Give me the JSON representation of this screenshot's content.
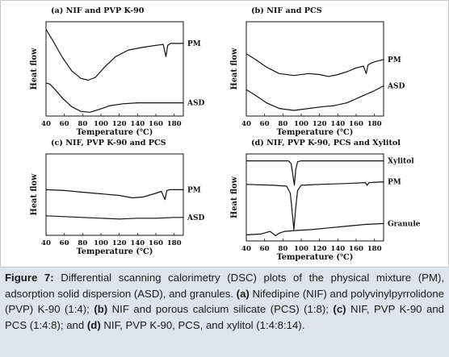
{
  "figure": {
    "caption": {
      "label": "Figure 7:",
      "text": " Differential scanning calorimetry (DSC) plots of the physical mixture (PM), adsorption solid dispersion (ASD), and granules. ",
      "parts": [
        {
          "tag": "(a)",
          "text": " Nifedipine (NIF) and polyvinylpyrrolidone (PVP) K-90 (1:4); "
        },
        {
          "tag": "(b)",
          "text": " NIF and porous calcium silicate (PCS) (1:8); "
        },
        {
          "tag": "(c)",
          "text": " NIF, PVP K-90 and PCS (1:4:8); and "
        },
        {
          "tag": "(d)",
          "text": " NIF, PVP K-90, PCS, and xylitol (1:4:8:14)."
        }
      ]
    }
  },
  "chart_data": [
    {
      "type": "line",
      "title": "(a) NIF and PVP K-90",
      "xlabel": "Temperature (℃)",
      "ylabel": "Heat flow",
      "xlim": [
        40,
        190
      ],
      "x_ticks": [
        40,
        60,
        80,
        100,
        120,
        140,
        160,
        180
      ],
      "ylim": [
        0,
        1
      ],
      "series": [
        {
          "name": "PM",
          "color": "#111111",
          "x": [
            40,
            48,
            58,
            68,
            78,
            86,
            94,
            104,
            116,
            130,
            146,
            160,
            168,
            171,
            173,
            176,
            182,
            190
          ],
          "y": [
            0.92,
            0.79,
            0.62,
            0.48,
            0.4,
            0.38,
            0.41,
            0.52,
            0.63,
            0.7,
            0.73,
            0.75,
            0.76,
            0.63,
            0.75,
            0.77,
            0.77,
            0.77
          ]
        },
        {
          "name": "ASD",
          "color": "#111111",
          "x": [
            40,
            44,
            50,
            58,
            68,
            78,
            88,
            98,
            110,
            124,
            140,
            160,
            180,
            190
          ],
          "y": [
            0.35,
            0.34,
            0.28,
            0.19,
            0.1,
            0.05,
            0.04,
            0.07,
            0.11,
            0.13,
            0.14,
            0.14,
            0.14,
            0.14
          ]
        }
      ]
    },
    {
      "type": "line",
      "title": "(b) NIF and PCS",
      "xlabel": "Temperature (℃)",
      "ylabel": "Heat flow",
      "xlim": [
        40,
        190
      ],
      "x_ticks": [
        40,
        60,
        80,
        100,
        120,
        140,
        160,
        180
      ],
      "ylim": [
        0,
        1
      ],
      "series": [
        {
          "name": "PM",
          "color": "#111111",
          "x": [
            40,
            50,
            62,
            76,
            92,
            108,
            120,
            130,
            140,
            150,
            160,
            168,
            171,
            173,
            176,
            182,
            190
          ],
          "y": [
            0.66,
            0.6,
            0.52,
            0.45,
            0.43,
            0.45,
            0.44,
            0.42,
            0.44,
            0.47,
            0.51,
            0.53,
            0.45,
            0.54,
            0.56,
            0.58,
            0.6
          ]
        },
        {
          "name": "ASD",
          "color": "#111111",
          "x": [
            40,
            50,
            62,
            76,
            92,
            108,
            124,
            136,
            150,
            164,
            178,
            190
          ],
          "y": [
            0.28,
            0.22,
            0.14,
            0.08,
            0.06,
            0.08,
            0.1,
            0.11,
            0.14,
            0.2,
            0.26,
            0.32
          ]
        }
      ]
    },
    {
      "type": "line",
      "title": "(c) NIF, PVP K-90 and PCS",
      "xlabel": "Temperature (℃)",
      "ylabel": "Heat flow",
      "xlim": [
        40,
        190
      ],
      "x_ticks": [
        40,
        60,
        80,
        100,
        120,
        140,
        160,
        180
      ],
      "ylim": [
        0,
        1
      ],
      "series": [
        {
          "name": "PM",
          "color": "#111111",
          "x": [
            40,
            60,
            80,
            100,
            120,
            134,
            146,
            158,
            166,
            170,
            172,
            175,
            180,
            190
          ],
          "y": [
            0.56,
            0.55,
            0.53,
            0.51,
            0.49,
            0.46,
            0.47,
            0.51,
            0.54,
            0.44,
            0.55,
            0.56,
            0.56,
            0.56
          ]
        },
        {
          "name": "ASD",
          "color": "#111111",
          "x": [
            40,
            60,
            80,
            100,
            120,
            140,
            160,
            180,
            190
          ],
          "y": [
            0.24,
            0.23,
            0.22,
            0.21,
            0.2,
            0.21,
            0.21,
            0.22,
            0.22
          ]
        }
      ]
    },
    {
      "type": "line",
      "title": "(d) NIF, PVP K-90, PCS and Xylitol",
      "xlabel": "Temperature (℃)",
      "ylabel": "Heat flow",
      "xlim": [
        40,
        190
      ],
      "x_ticks": [
        40,
        60,
        80,
        100,
        120,
        140,
        160,
        180
      ],
      "ylim": [
        0,
        1
      ],
      "series": [
        {
          "name": "Xylitol",
          "color": "#111111",
          "x": [
            40,
            70,
            86,
            89,
            91,
            92.5,
            94,
            96,
            100,
            130,
            160,
            178,
            190
          ],
          "y": [
            0.92,
            0.92,
            0.92,
            0.89,
            0.75,
            0.64,
            0.82,
            0.91,
            0.92,
            0.92,
            0.92,
            0.92,
            0.92
          ]
        },
        {
          "name": "PM",
          "color": "#111111",
          "x": [
            40,
            70,
            84,
            88,
            90,
            92,
            94,
            96,
            100,
            120,
            150,
            170,
            172,
            174,
            190
          ],
          "y": [
            0.65,
            0.64,
            0.63,
            0.55,
            0.35,
            0.13,
            0.38,
            0.58,
            0.64,
            0.65,
            0.66,
            0.67,
            0.64,
            0.67,
            0.68
          ]
        },
        {
          "name": "Granule",
          "color": "#111111",
          "x": [
            40,
            56,
            66,
            72,
            76,
            82,
            94,
            110,
            130,
            150,
            170,
            190
          ],
          "y": [
            0.07,
            0.08,
            0.11,
            0.06,
            0.09,
            0.11,
            0.12,
            0.13,
            0.15,
            0.17,
            0.19,
            0.2
          ]
        }
      ]
    }
  ]
}
